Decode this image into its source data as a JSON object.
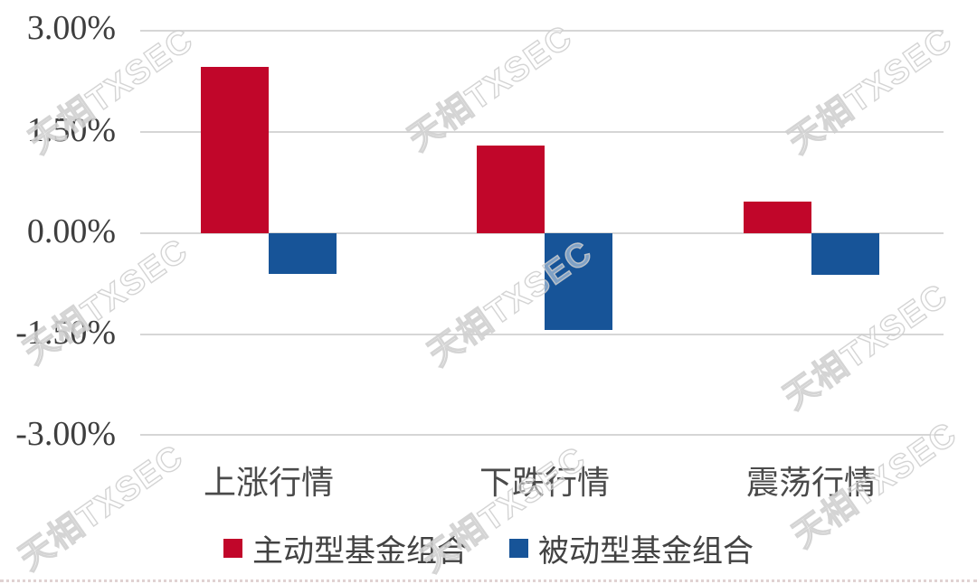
{
  "watermark": {
    "text": "天相TXSEC"
  },
  "chart_data": {
    "type": "bar",
    "title": "",
    "xlabel": "",
    "ylabel": "",
    "categories": [
      "上涨行情",
      "下跌行情",
      "震荡行情"
    ],
    "series": [
      {
        "name": "主动型基金组合",
        "color": "#C1062A",
        "values": [
          2.46,
          1.29,
          0.47
        ]
      },
      {
        "name": "被动型基金组合",
        "color": "#175498",
        "values": [
          -0.6,
          -1.43,
          -0.61
        ]
      }
    ],
    "yticks": [
      "3.00%",
      "1.50%",
      "0.00%",
      "-1.50%",
      "-3.00%"
    ],
    "ylim": [
      -3,
      3
    ],
    "grid": true,
    "legend_position": "bottom"
  }
}
